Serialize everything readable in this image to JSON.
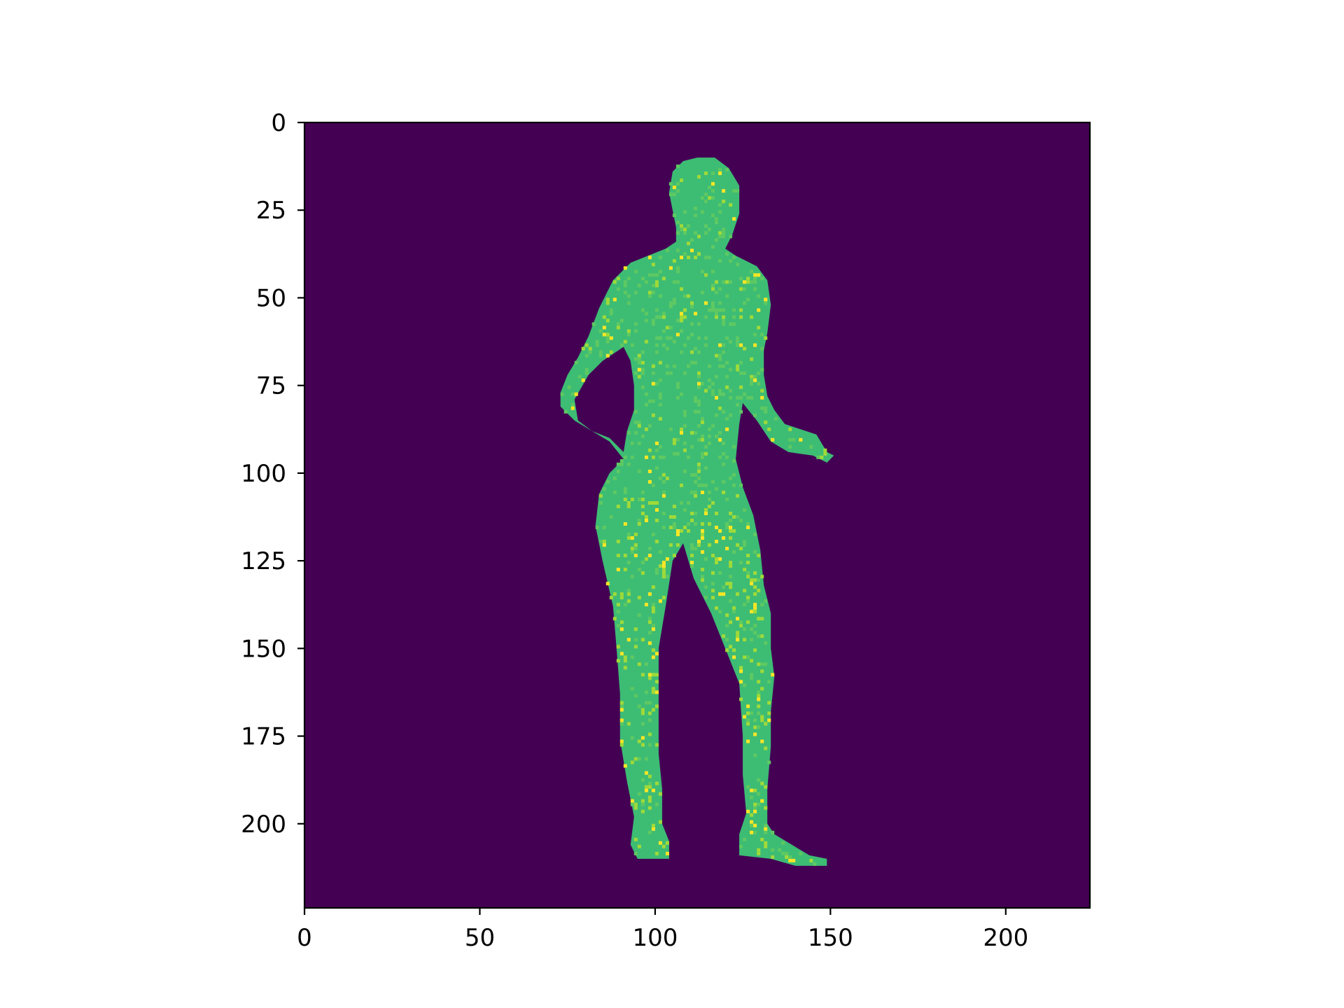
{
  "chart_data": {
    "type": "heatmap",
    "image_size": [
      224,
      224
    ],
    "colormap": "viridis",
    "background_color": "#440154",
    "figure_color": "#3dbc74",
    "speckle_colors": [
      "#5ec962",
      "#a0da39",
      "#fde725"
    ],
    "xlim": [
      0,
      224
    ],
    "ylim": [
      224,
      0
    ],
    "x_ticks": [
      0,
      50,
      100,
      150,
      200
    ],
    "y_ticks": [
      0,
      25,
      50,
      75,
      100,
      125,
      150,
      175,
      200
    ],
    "x_tick_labels": [
      "0",
      "50",
      "100",
      "150",
      "200"
    ],
    "y_tick_labels": [
      "0",
      "25",
      "50",
      "75",
      "100",
      "125",
      "150",
      "175",
      "200"
    ],
    "grid": false,
    "silhouette_outline": [
      [
        112,
        10
      ],
      [
        117,
        10
      ],
      [
        121,
        13
      ],
      [
        124,
        18
      ],
      [
        124,
        26
      ],
      [
        122,
        32
      ],
      [
        120,
        36
      ],
      [
        123,
        38
      ],
      [
        129,
        41
      ],
      [
        132,
        45
      ],
      [
        133,
        52
      ],
      [
        132,
        60
      ],
      [
        131,
        65
      ],
      [
        131,
        72
      ],
      [
        132,
        78
      ],
      [
        134,
        82
      ],
      [
        137,
        86
      ],
      [
        143,
        88
      ],
      [
        146,
        89
      ],
      [
        149,
        94
      ],
      [
        151,
        95
      ],
      [
        149,
        97
      ],
      [
        145,
        95
      ],
      [
        138,
        94
      ],
      [
        133,
        91
      ],
      [
        129,
        85
      ],
      [
        125,
        80
      ],
      [
        124,
        86
      ],
      [
        123,
        96
      ],
      [
        125,
        104
      ],
      [
        128,
        112
      ],
      [
        130,
        122
      ],
      [
        131,
        132
      ],
      [
        133,
        140
      ],
      [
        133,
        150
      ],
      [
        134,
        158
      ],
      [
        133,
        168
      ],
      [
        133,
        178
      ],
      [
        132,
        190
      ],
      [
        132,
        200
      ],
      [
        134,
        203
      ],
      [
        139,
        206
      ],
      [
        144,
        209
      ],
      [
        149,
        210
      ],
      [
        149,
        212
      ],
      [
        140,
        212
      ],
      [
        133,
        210
      ],
      [
        124,
        209
      ],
      [
        124,
        203
      ],
      [
        126,
        197
      ],
      [
        125,
        186
      ],
      [
        125,
        175
      ],
      [
        124,
        160
      ],
      [
        120,
        150
      ],
      [
        116,
        140
      ],
      [
        111,
        130
      ],
      [
        108,
        120
      ],
      [
        105,
        125
      ],
      [
        103,
        138
      ],
      [
        101,
        150
      ],
      [
        101,
        165
      ],
      [
        101,
        180
      ],
      [
        102,
        190
      ],
      [
        102,
        200
      ],
      [
        104,
        205
      ],
      [
        104,
        210
      ],
      [
        95,
        210
      ],
      [
        93,
        206
      ],
      [
        94,
        198
      ],
      [
        92,
        188
      ],
      [
        90,
        176
      ],
      [
        90,
        163
      ],
      [
        89,
        150
      ],
      [
        88,
        138
      ],
      [
        85,
        125
      ],
      [
        83,
        115
      ],
      [
        84,
        106
      ],
      [
        87,
        100
      ],
      [
        91,
        96
      ],
      [
        87,
        91
      ],
      [
        82,
        88
      ],
      [
        77,
        85
      ],
      [
        73,
        81
      ],
      [
        73,
        77
      ],
      [
        75,
        72
      ],
      [
        78,
        67
      ],
      [
        81,
        61
      ],
      [
        84,
        53
      ],
      [
        88,
        45
      ],
      [
        93,
        40
      ],
      [
        98,
        38
      ],
      [
        103,
        36
      ],
      [
        106,
        34
      ],
      [
        106,
        30
      ],
      [
        105,
        25
      ],
      [
        104,
        20
      ],
      [
        105,
        14
      ],
      [
        108,
        11
      ]
    ],
    "arm_gap_outline": [
      [
        91,
        64
      ],
      [
        93,
        68
      ],
      [
        94,
        75
      ],
      [
        94,
        82
      ],
      [
        92,
        88
      ],
      [
        91,
        94
      ],
      [
        87,
        90
      ],
      [
        82,
        88
      ],
      [
        78,
        85
      ],
      [
        77,
        79
      ],
      [
        81,
        72
      ],
      [
        85,
        68
      ]
    ]
  }
}
